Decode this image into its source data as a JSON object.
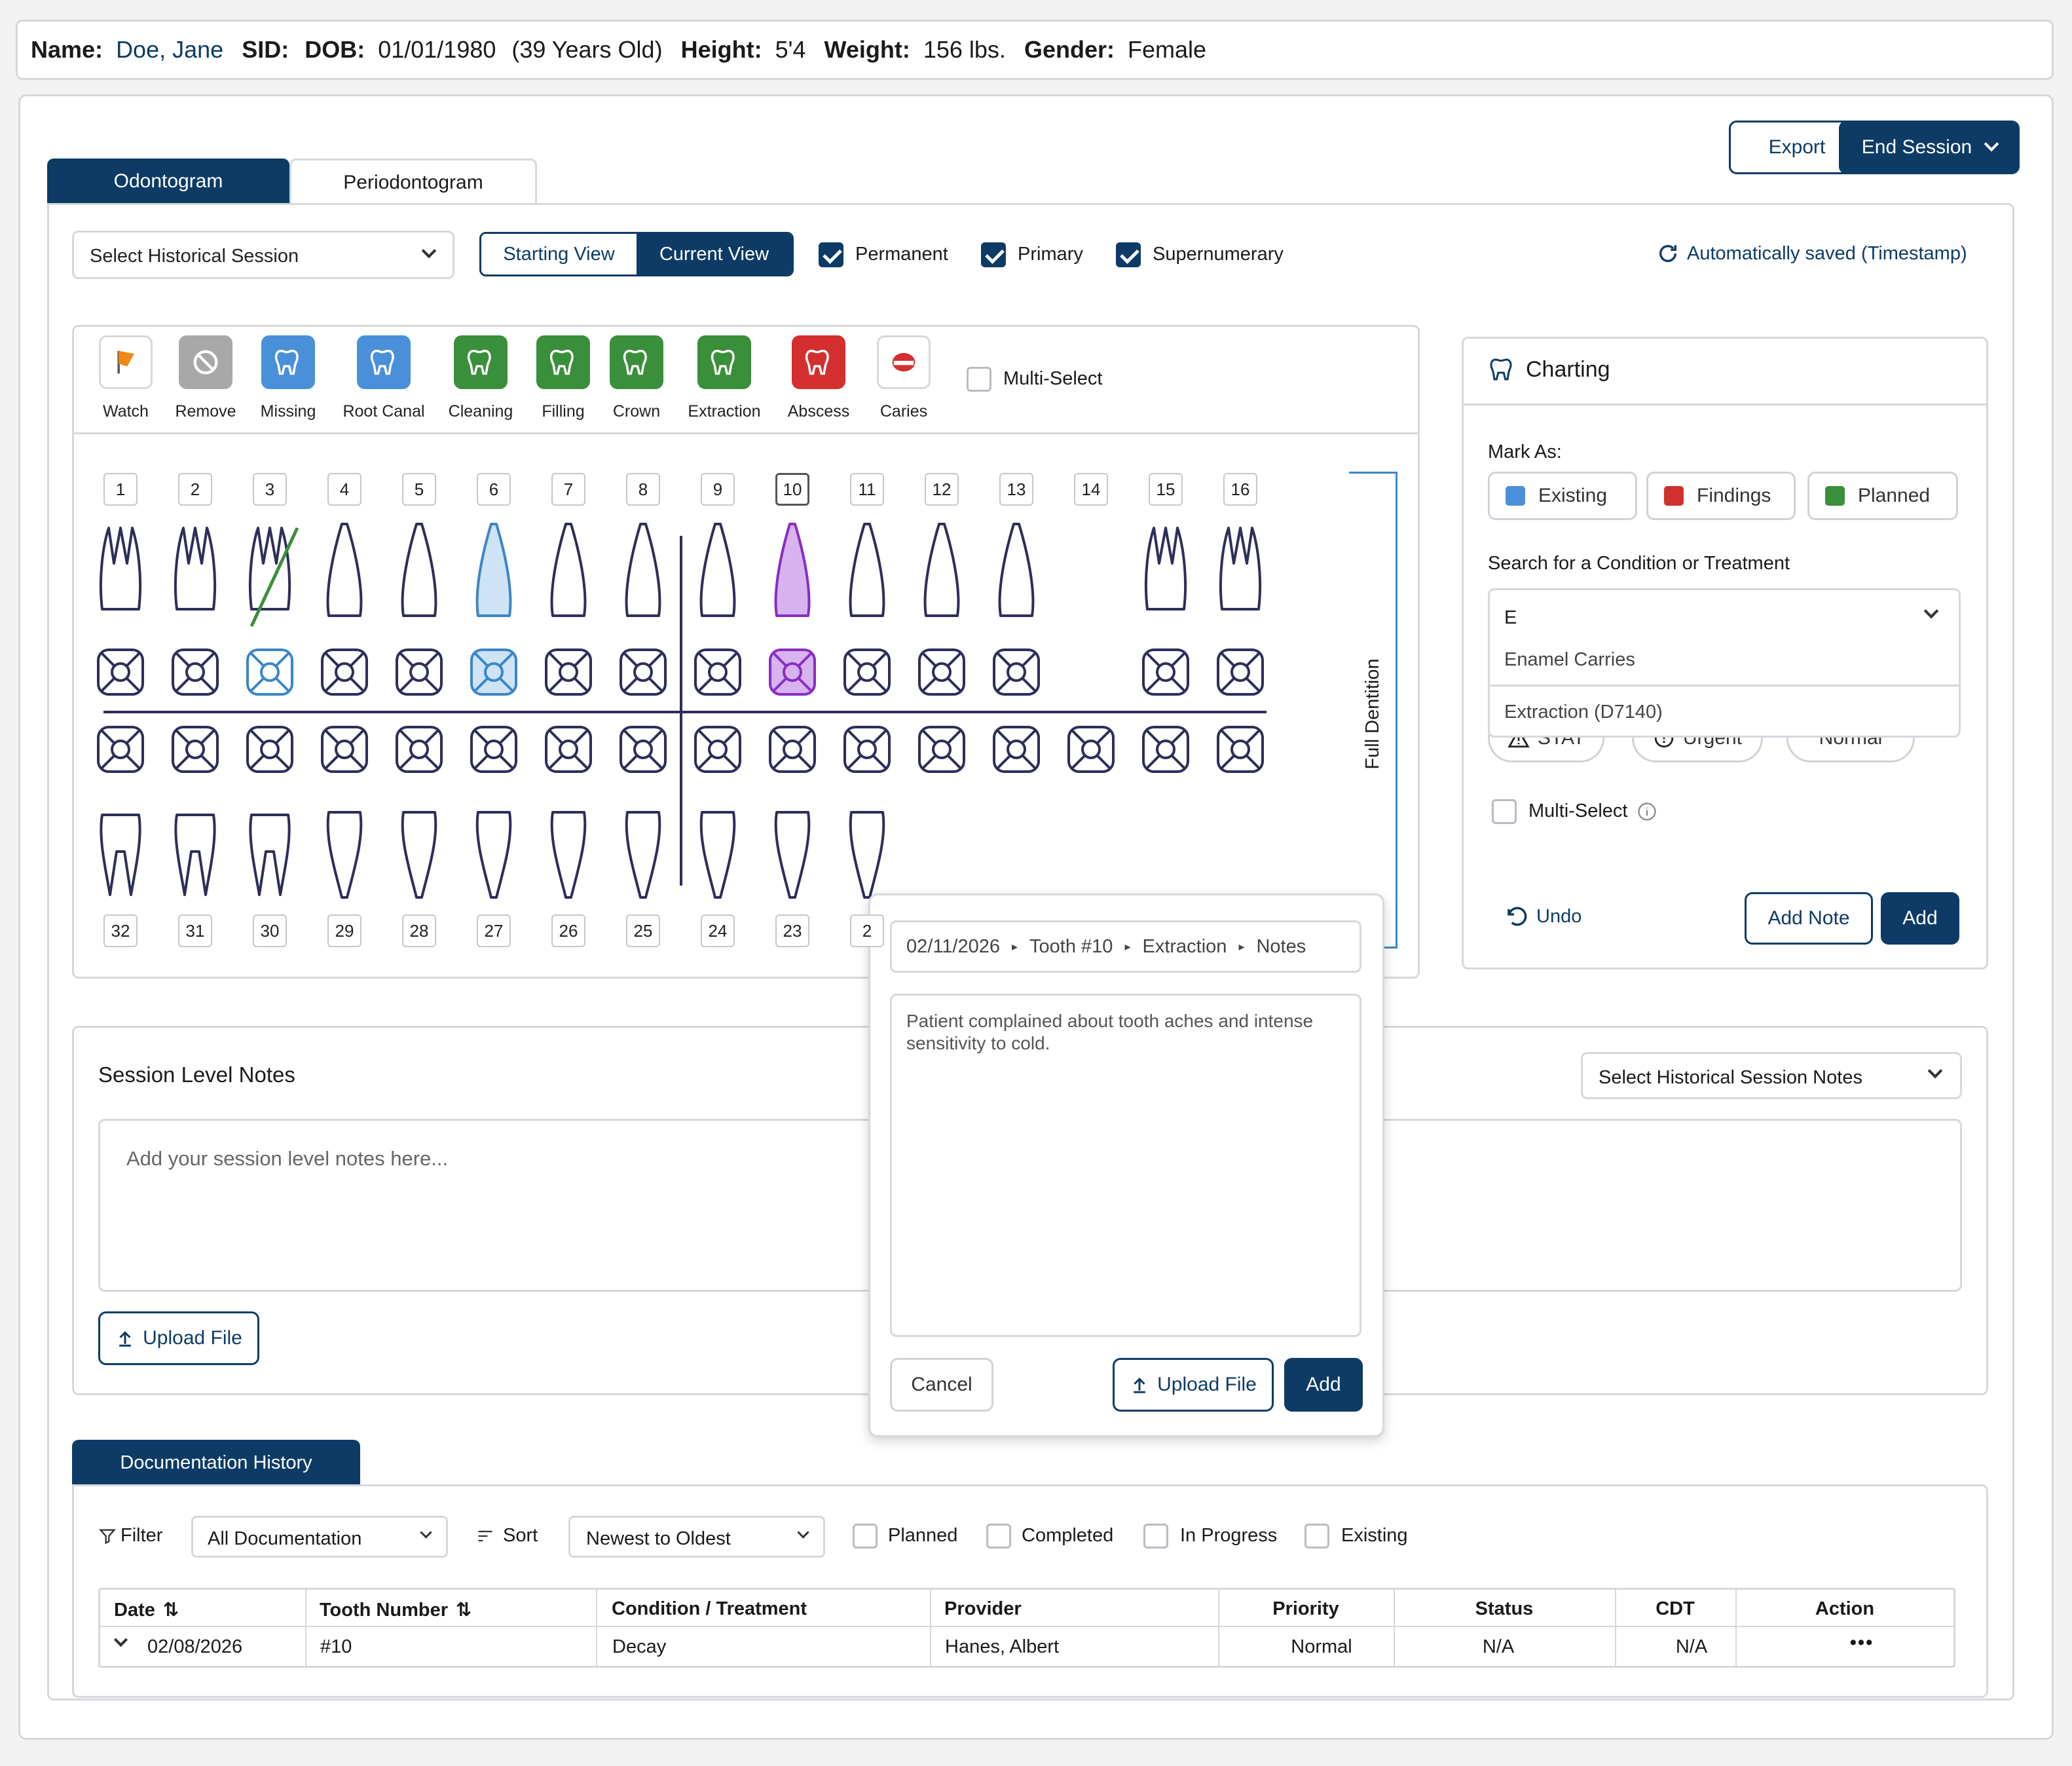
{
  "patient": {
    "name_label": "Name:",
    "name": "Doe, Jane",
    "sid_label": "SID:",
    "dob_label": "DOB:",
    "dob": "01/01/1980",
    "age": "(39 Years Old)",
    "height_label": "Height:",
    "height": "5'4",
    "weight_label": "Weight:",
    "weight": "156 lbs.",
    "gender_label": "Gender:",
    "gender": "Female"
  },
  "header_actions": {
    "export": "Export",
    "end_session": "End Session"
  },
  "tabs": [
    {
      "label": "Odontogram",
      "active": true
    },
    {
      "label": "Periodontogram",
      "active": false
    }
  ],
  "toolbar": {
    "historical_session_placeholder": "Select Historical Session",
    "view_toggle": [
      "Starting View",
      "Current View"
    ],
    "checks": [
      {
        "label": "Permanent",
        "checked": true
      },
      {
        "label": "Primary",
        "checked": true
      },
      {
        "label": "Supernumerary",
        "checked": true
      }
    ],
    "autosave": "Automatically saved (Timestamp)"
  },
  "tools": [
    {
      "label": "Watch",
      "icon": "flag-icon",
      "color": "#ffffff"
    },
    {
      "label": "Remove",
      "icon": "remove-icon",
      "color": "#a8a8a8"
    },
    {
      "label": "Missing",
      "icon": "tooth-missing-icon",
      "color": "#4a90d9"
    },
    {
      "label": "Root Canal",
      "icon": "tooth-root-canal-icon",
      "color": "#4a90d9"
    },
    {
      "label": "Cleaning",
      "icon": "tooth-cleaning-icon",
      "color": "#3a8f3a"
    },
    {
      "label": "Filling",
      "icon": "tooth-filling-icon",
      "color": "#3a8f3a"
    },
    {
      "label": "Crown",
      "icon": "tooth-crown-icon",
      "color": "#3a8f3a"
    },
    {
      "label": "Extraction",
      "icon": "tooth-extraction-icon",
      "color": "#3a8f3a"
    },
    {
      "label": "Abscess",
      "icon": "tooth-abscess-icon",
      "color": "#d32f2f"
    },
    {
      "label": "Caries",
      "icon": "tooth-caries-icon",
      "color": "#ffffff"
    }
  ],
  "multi_select_label": "Multi-Select",
  "upper_teeth": [
    "1",
    "2",
    "3",
    "4",
    "5",
    "6",
    "7",
    "8",
    "9",
    "10",
    "11",
    "12",
    "13",
    "14",
    "15",
    "16"
  ],
  "lower_teeth": [
    "32",
    "31",
    "30",
    "29",
    "28",
    "27",
    "26",
    "25",
    "24",
    "23",
    "2"
  ],
  "full_dentition_label": "Full Dentition",
  "charting": {
    "title": "Charting",
    "mark_as_label": "Mark As:",
    "mark_options": [
      {
        "label": "Existing",
        "color": "#4a90d9"
      },
      {
        "label": "Findings",
        "color": "#d32f2f"
      },
      {
        "label": "Planned",
        "color": "#3a8f3a"
      }
    ],
    "search_label": "Search for a Condition or Treatment",
    "search_value": "E",
    "suggestions": [
      "Enamel Carries",
      "Extraction (D7140)"
    ],
    "priority": [
      "STAT",
      "Urgent",
      "Normal"
    ],
    "multi_select": "Multi-Select",
    "undo": "Undo",
    "add_note": "Add Note",
    "add": "Add"
  },
  "note_popup": {
    "breadcrumb": [
      "02/11/2026",
      "Tooth #10",
      "Extraction",
      "Notes"
    ],
    "text": "Patient complained about tooth aches and intense sensitivity to cold.",
    "cancel": "Cancel",
    "upload": "Upload File",
    "add": "Add"
  },
  "session_notes": {
    "title": "Session Level Notes",
    "historical_placeholder": "Select Historical Session Notes",
    "placeholder": "Add your session level notes here...",
    "upload": "Upload File"
  },
  "documentation": {
    "tab": "Documentation History",
    "filter_label": "Filter",
    "filter_value": "All Documentation",
    "sort_label": "Sort",
    "sort_value": "Newest to Oldest",
    "status_checks": [
      "Planned",
      "Completed",
      "In Progress",
      "Existing"
    ],
    "columns": [
      "Date",
      "Tooth Number",
      "Condition / Treatment",
      "Provider",
      "Priority",
      "Status",
      "CDT",
      "Action"
    ],
    "rows": [
      {
        "date": "02/08/2026",
        "tooth": "#10",
        "condition": "Decay",
        "provider": "Hanes, Albert",
        "priority": "Normal",
        "status": "N/A",
        "cdt": "N/A",
        "action": "•••"
      }
    ]
  }
}
